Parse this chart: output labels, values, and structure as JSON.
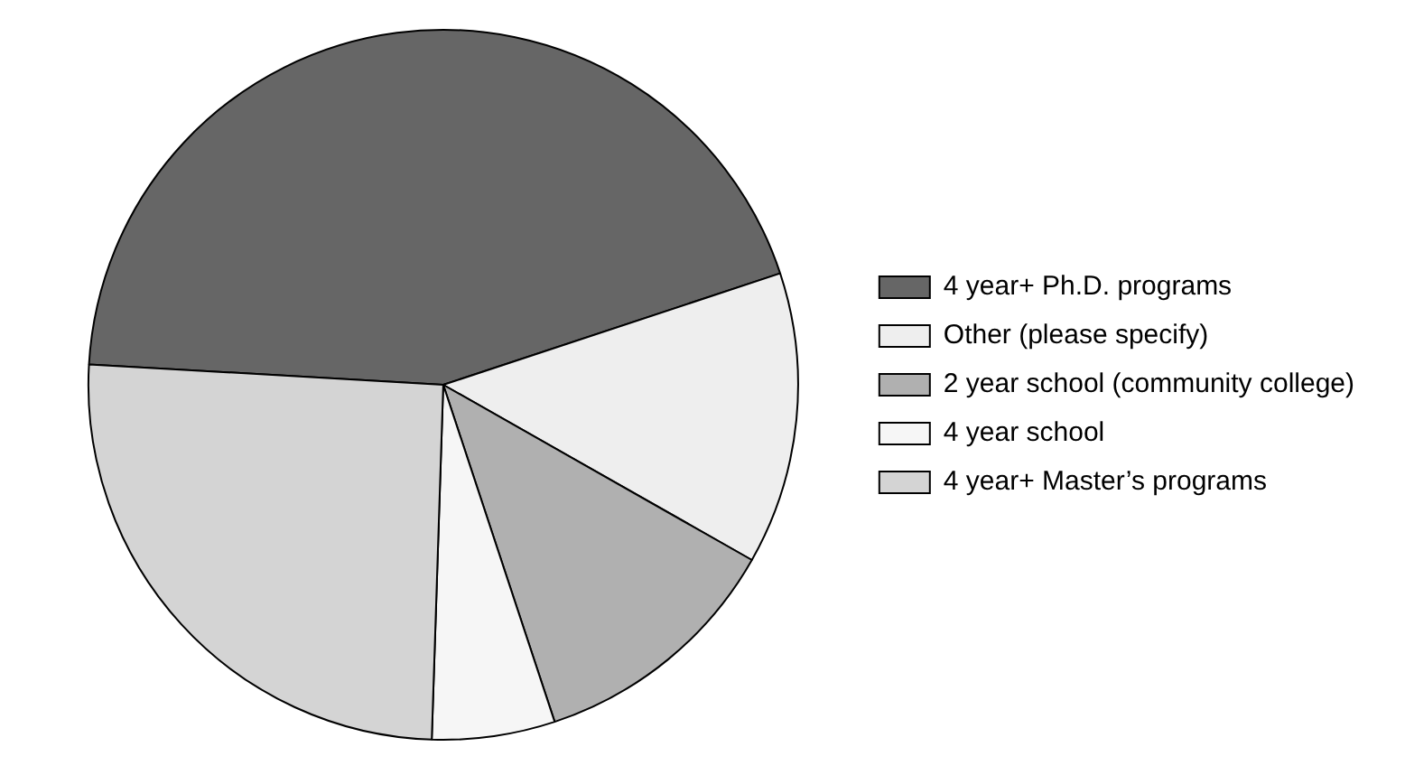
{
  "chart_data": {
    "type": "pie",
    "categories": [
      "4 year+ Ph.D. programs",
      "Other (please specify)",
      "2 year school (community college)",
      "4 year school",
      "4 year+ Master’s programs"
    ],
    "values": [
      44,
      13.3,
      11.7,
      5.6,
      25.4
    ],
    "colors": [
      "#666666",
      "#eeeeee",
      "#b0b0b0",
      "#f6f6f6",
      "#d4d4d4"
    ],
    "legend": "right"
  }
}
